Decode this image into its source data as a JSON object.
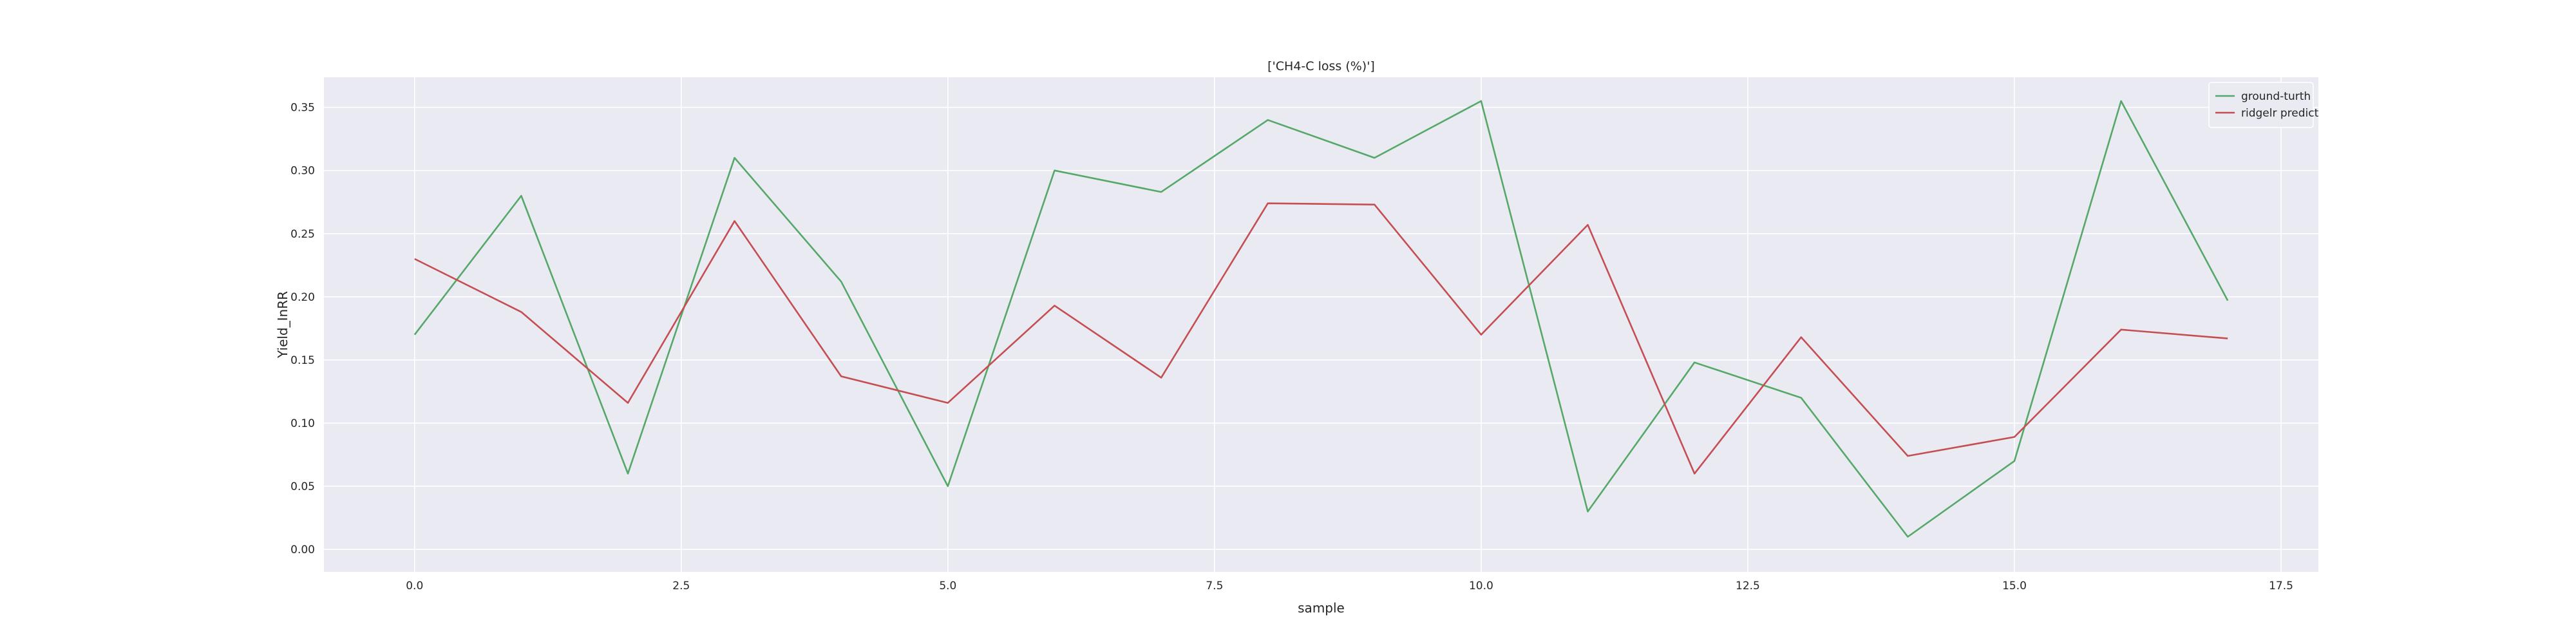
{
  "chart_data": {
    "type": "line",
    "title": "['CH4-C loss (%)']",
    "xlabel": "sample",
    "ylabel": "Yield_InRR",
    "xlim": [
      -0.85,
      17.85
    ],
    "ylim": [
      -0.0178,
      0.3738
    ],
    "x_ticks": [
      0.0,
      2.5,
      5.0,
      7.5,
      10.0,
      12.5,
      15.0,
      17.5
    ],
    "x_tick_labels": [
      "0.0",
      "2.5",
      "5.0",
      "7.5",
      "10.0",
      "12.5",
      "15.0",
      "17.5"
    ],
    "y_ticks": [
      0.0,
      0.05,
      0.1,
      0.15,
      0.2,
      0.25,
      0.3,
      0.35
    ],
    "y_tick_labels": [
      "0.00",
      "0.05",
      "0.10",
      "0.15",
      "0.20",
      "0.25",
      "0.30",
      "0.35"
    ],
    "grid": true,
    "legend_position": "top-right",
    "x": [
      0,
      1,
      2,
      3,
      4,
      5,
      6,
      7,
      8,
      9,
      10,
      11,
      12,
      13,
      14,
      15,
      16,
      17
    ],
    "series": [
      {
        "name": "ground-turth",
        "color": "#55a868",
        "values": [
          0.17,
          0.28,
          0.06,
          0.31,
          0.212,
          0.05,
          0.3,
          0.283,
          0.34,
          0.31,
          0.355,
          0.03,
          0.148,
          0.12,
          0.01,
          0.07,
          0.355,
          0.197
        ]
      },
      {
        "name": "ridgelr predict",
        "color": "#c44e52",
        "values": [
          0.23,
          0.188,
          0.116,
          0.26,
          0.137,
          0.116,
          0.193,
          0.136,
          0.274,
          0.273,
          0.17,
          0.257,
          0.06,
          0.168,
          0.074,
          0.089,
          0.174,
          0.167
        ]
      }
    ],
    "colors": {
      "plot_background": "#eaeaf2",
      "grid": "#ffffff"
    }
  }
}
